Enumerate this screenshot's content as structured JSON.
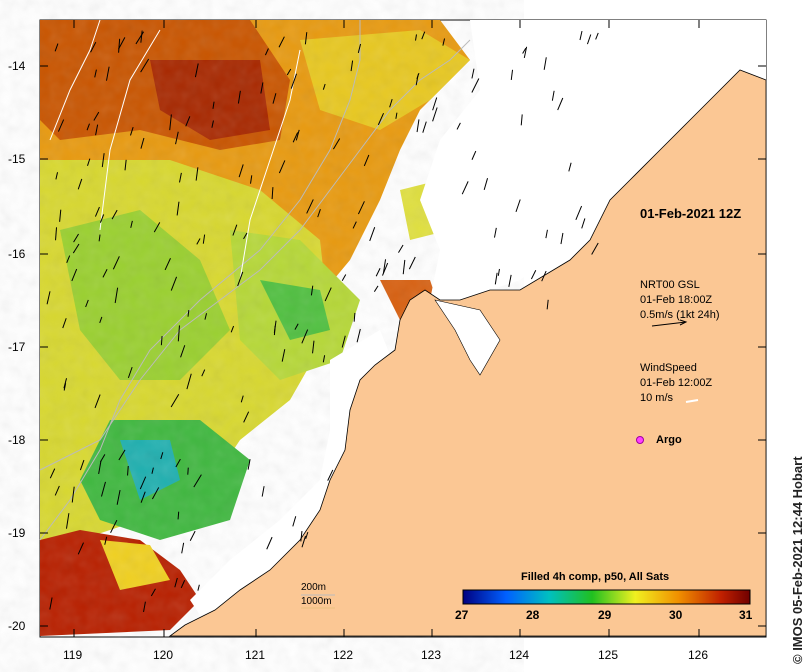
{
  "map": {
    "lon_ticks": [
      "119",
      "120",
      "121",
      "122",
      "123",
      "124",
      "125",
      "126"
    ],
    "lat_ticks": [
      "-14",
      "-15",
      "-16",
      "-17",
      "-18",
      "-19",
      "-20"
    ],
    "timestamp": "01-Feb-2021 12Z",
    "colors": {
      "land": "#fbc794",
      "water_nodata": "#ffffff",
      "coast": "#000000"
    }
  },
  "current_info": {
    "line1": "NRT00 GSL",
    "line2": "01-Feb 18:00Z",
    "line3": "0.5m/s (1kt 24h)"
  },
  "wind_info": {
    "line1": "WindSpeed",
    "line2": "01-Feb 12:00Z",
    "line3": "10 m/s"
  },
  "argo_label": "Argo",
  "scale_labels": {
    "a": "200m",
    "b": "1000m"
  },
  "legend": {
    "title": "Filled 4h comp, p50, All Sats",
    "ticks": [
      "27",
      "28",
      "29",
      "30",
      "31"
    ],
    "colors": [
      "#000080",
      "#0060ff",
      "#00c0c0",
      "#20c020",
      "#f0f020",
      "#f09000",
      "#c02000",
      "#700000"
    ]
  },
  "credit": "© IMOS 05-Feb-2021 12:44 Hobart"
}
